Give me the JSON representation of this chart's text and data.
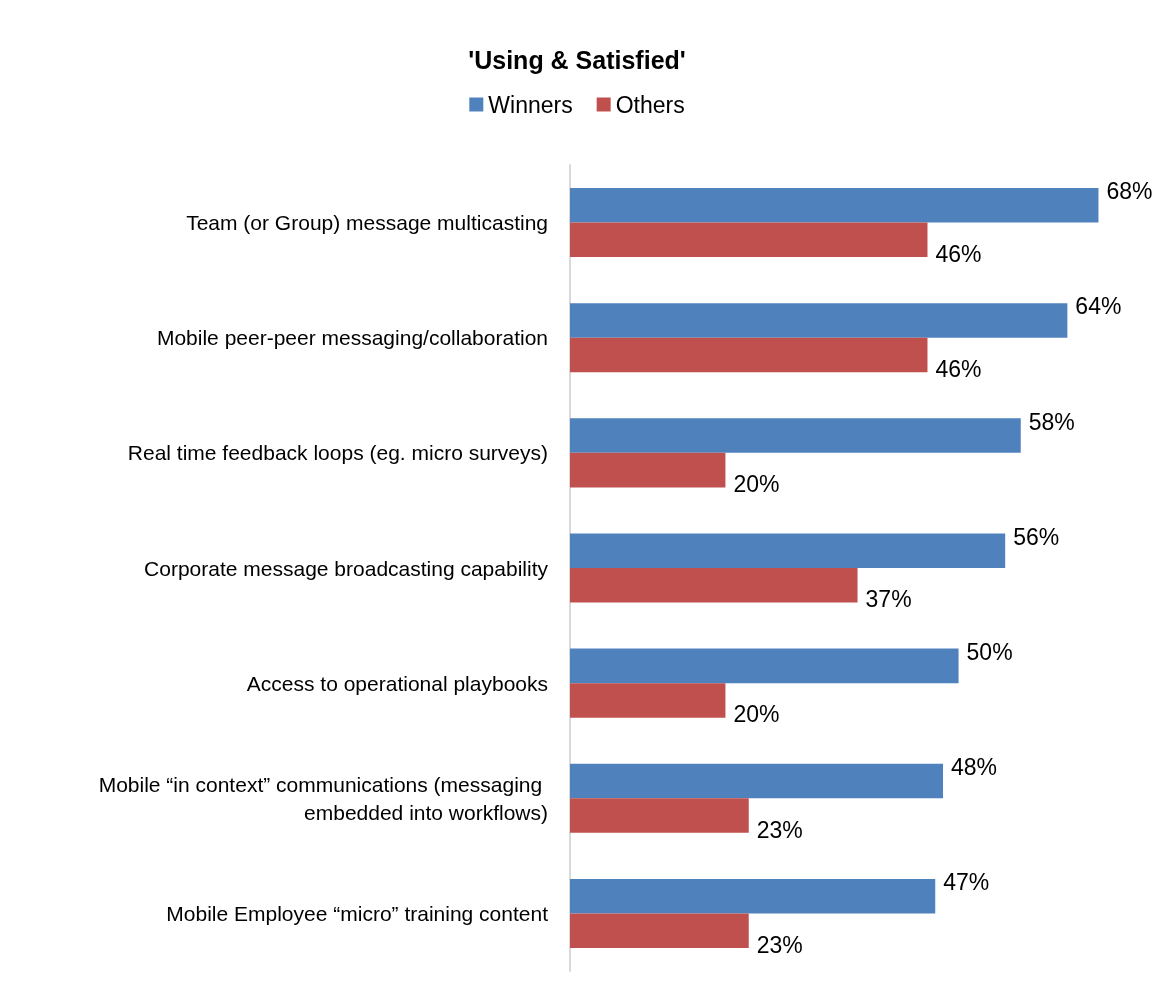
{
  "chart_data": {
    "type": "bar",
    "orientation": "horizontal",
    "title": "'Using & Satisfied'",
    "categories": [
      "Team (or Group) message multicasting",
      "Mobile peer-peer messaging/collaboration",
      "Real time feedback loops (eg. micro surveys)",
      "Corporate message broadcasting capability",
      "Access to operational playbooks",
      "Mobile “in context” communications (messaging embedded into workflows)",
      "Mobile Employee “micro” training content"
    ],
    "series": [
      {
        "name": "Winners",
        "color": "#4f81bd",
        "values": [
          68,
          64,
          58,
          56,
          50,
          48,
          47
        ],
        "value_labels": [
          "68%",
          "64%",
          "58%",
          "56%",
          "50%",
          "48%",
          "47%"
        ]
      },
      {
        "name": "Others",
        "color": "#c0504d",
        "values": [
          46,
          46,
          20,
          37,
          20,
          23,
          23
        ],
        "value_labels": [
          "46%",
          "46%",
          "20%",
          "37%",
          "20%",
          "23%",
          "23%"
        ]
      }
    ],
    "tick_labels": "y",
    "legend": "top"
  }
}
